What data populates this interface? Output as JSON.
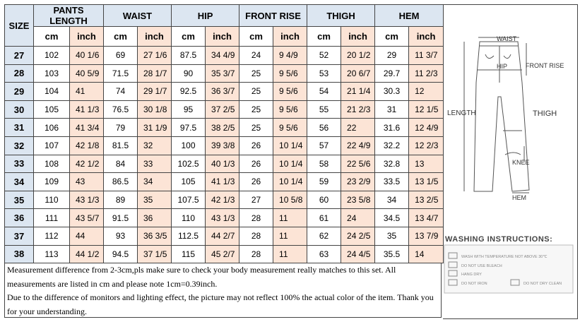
{
  "table": {
    "header": {
      "size": "SIZE",
      "groups": [
        "PANTS LENGTH",
        "WAIST",
        "HIP",
        "FRONT RISE",
        "THIGH",
        "HEM"
      ],
      "units": [
        "cm",
        "inch",
        "cm",
        "inch",
        "cm",
        "inch",
        "cm",
        "inch",
        "cm",
        "inch",
        "cm",
        "inch"
      ]
    },
    "rows": [
      [
        "27",
        "102",
        "40 1/6",
        "69",
        "27 1/6",
        "87.5",
        "34 4/9",
        "24",
        "9 4/9",
        "52",
        "20 1/2",
        "29",
        "11 3/7"
      ],
      [
        "28",
        "103",
        "40 5/9",
        "71.5",
        "28 1/7",
        "90",
        "35 3/7",
        "25",
        "9 5/6",
        "53",
        "20 6/7",
        "29.7",
        "11 2/3"
      ],
      [
        "29",
        "104",
        "41",
        "74",
        "29 1/7",
        "92.5",
        "36 3/7",
        "25",
        "9 5/6",
        "54",
        "21 1/4",
        "30.3",
        "12"
      ],
      [
        "30",
        "105",
        "41 1/3",
        "76.5",
        "30 1/8",
        "95",
        "37 2/5",
        "25",
        "9 5/6",
        "55",
        "21 2/3",
        "31",
        "12 1/5"
      ],
      [
        "31",
        "106",
        "41 3/4",
        "79",
        "31 1/9",
        "97.5",
        "38 2/5",
        "25",
        "9 5/6",
        "56",
        "22",
        "31.6",
        "12 4/9"
      ],
      [
        "32",
        "107",
        "42 1/8",
        "81.5",
        "32",
        "100",
        "39 3/8",
        "26",
        "10 1/4",
        "57",
        "22 4/9",
        "32.2",
        "12 2/3"
      ],
      [
        "33",
        "108",
        "42 1/2",
        "84",
        "33",
        "102.5",
        "40 1/3",
        "26",
        "10 1/4",
        "58",
        "22 5/6",
        "32.8",
        "13"
      ],
      [
        "34",
        "109",
        "43",
        "86.5",
        "34",
        "105",
        "41 1/3",
        "26",
        "10 1/4",
        "59",
        "23 2/9",
        "33.5",
        "13 1/5"
      ],
      [
        "35",
        "110",
        "43 1/3",
        "89",
        "35",
        "107.5",
        "42 1/3",
        "27",
        "10 5/8",
        "60",
        "23 5/8",
        "34",
        "13 2/5"
      ],
      [
        "36",
        "111",
        "43 5/7",
        "91.5",
        "36",
        "110",
        "43 1/3",
        "28",
        "11",
        "61",
        "24",
        "34.5",
        "13 4/7"
      ],
      [
        "37",
        "112",
        "44",
        "93",
        "36 3/5",
        "112.5",
        "44 2/7",
        "28",
        "11",
        "62",
        "24 2/5",
        "35",
        "13 7/9"
      ],
      [
        "38",
        "113",
        "44 1/2",
        "94.5",
        "37 1/5",
        "115",
        "45 2/7",
        "28",
        "11",
        "63",
        "24 4/5",
        "35.5",
        "14"
      ]
    ]
  },
  "notes": [
    "Measurement difference from 2-3cm,pls make sure to check your body measurement really matches to this set. All measurements are listed in cm and please note 1cm=0.39inch.",
    "Due to the difference of monitors and lighting effect, the picture may not reflect 100% the actual color of the item. Thank you for your understanding."
  ],
  "diagram": {
    "labels": [
      "WAIST",
      "HIP",
      "FRONT RISE",
      "LENGTH",
      "THIGH",
      "KNEE",
      "HEM"
    ]
  },
  "washing": {
    "title": "WASHING INSTRUCTIONS:",
    "items": [
      "WASH WITH TEMPERATURE NOT ABOVE 30℃",
      "DO NOT USE BLEACH",
      "HANG DRY",
      "DO NOT IRON",
      "DO NOT DRY CLEAN"
    ]
  }
}
